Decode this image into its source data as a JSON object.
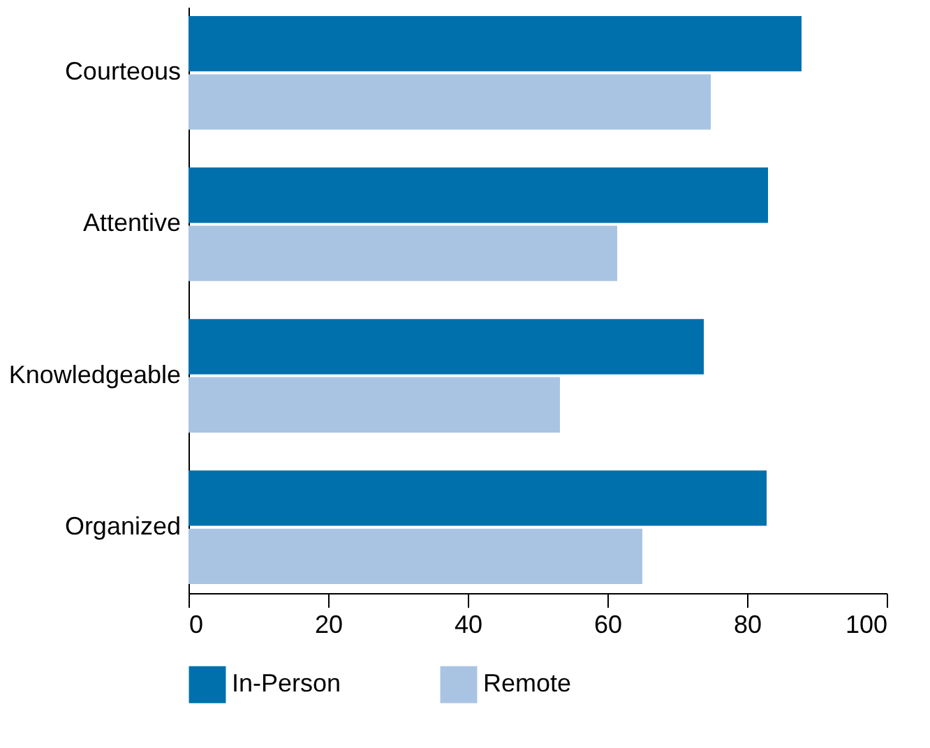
{
  "chart_data": {
    "type": "bar",
    "orientation": "horizontal",
    "categories": [
      "Courteous",
      "Attentive",
      "Knowledgeable",
      "Organized"
    ],
    "series": [
      {
        "name": "In-Person",
        "color": "#0070ad",
        "values": [
          87.8,
          83,
          73.8,
          82.8
        ]
      },
      {
        "name": "Remote",
        "color": "#a9c4e3",
        "values": [
          74.8,
          61.4,
          53.2,
          65
        ]
      }
    ],
    "xlim": [
      0,
      100
    ],
    "xticks": [
      0,
      20,
      40,
      60,
      80,
      100
    ],
    "grid": false,
    "legend": "bottom"
  }
}
